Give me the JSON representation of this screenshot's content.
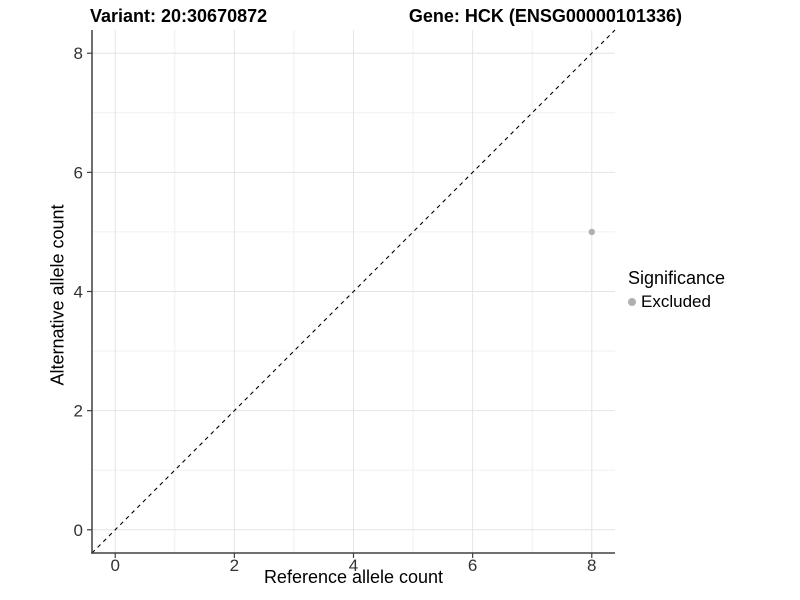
{
  "header": {
    "variant_title": "Variant: 20:30670872",
    "gene_title": "Gene: HCK (ENSG00000101336)"
  },
  "chart_data": {
    "type": "scatter",
    "xlabel": "Reference allele count",
    "ylabel": "Alternative allele count",
    "xlim": [
      -0.39,
      8.39
    ],
    "ylim": [
      -0.39,
      8.39
    ],
    "x_ticks": [
      0,
      2,
      4,
      6,
      8
    ],
    "y_ticks": [
      0,
      2,
      4,
      6,
      8
    ],
    "x_minor_ticks": [
      1,
      3,
      5,
      7
    ],
    "y_minor_ticks": [
      1,
      3,
      5,
      7
    ],
    "grid": "major and minor, light gray, no panel border",
    "abline": {
      "slope": 1,
      "intercept": 0,
      "style": "dashed",
      "color": "#000000"
    },
    "series": [
      {
        "name": "Excluded",
        "color": "#b0b0b0",
        "points": [
          {
            "x": 8,
            "y": 5
          }
        ]
      }
    ],
    "legend": {
      "title": "Significance",
      "position": "right",
      "items": [
        {
          "label": "Excluded",
          "color": "#b0b0b0"
        }
      ]
    }
  },
  "style": {
    "axis_color": "#404040",
    "tick_label_color": "#333333",
    "grid_major_color": "#e4e4e4",
    "grid_minor_color": "#f0f0f0",
    "background": "#ffffff"
  }
}
